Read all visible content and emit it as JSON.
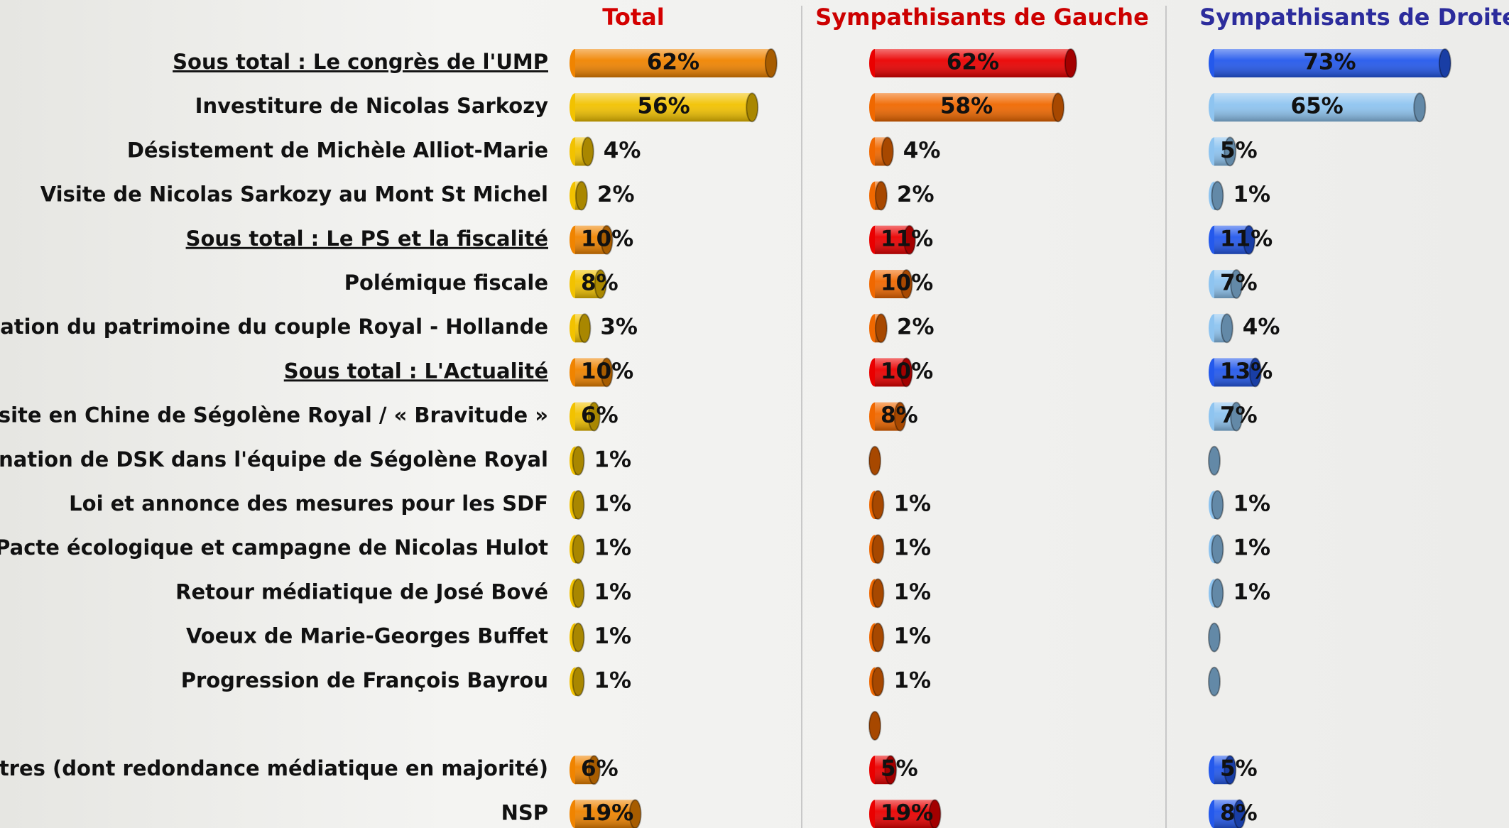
{
  "chart_data": {
    "type": "bar",
    "orientation": "horizontal",
    "categories": [
      "Sous total : Le congrès de l'UMP",
      "Investiture de Nicolas Sarkozy",
      "Désistement de Michèle Alliot-Marie",
      "Visite de Nicolas Sarkozy au Mont St Michel",
      "Sous total : Le PS et la fiscalité",
      "Polémique fiscale",
      "Révélation du patrimoine du couple Royal - Hollande",
      "Sous total : L'Actualité",
      "Visite en Chine de Ségolène Royal / « Bravitude »",
      "Nomination de DSK dans l'équipe de Ségolène Royal",
      "Loi et annonce des mesures pour les SDF",
      "Pacte écologique et campagne de Nicolas Hulot",
      "Retour médiatique de José Bové",
      "Voeux de Marie-Georges Buffet",
      "Progression de François Bayrou",
      null,
      "Autres (dont redondance médiatique en majorité)",
      "NSP"
    ],
    "underlined": [
      0,
      4,
      7
    ],
    "highlight_rows": [
      0,
      4,
      7,
      16,
      17
    ],
    "series": [
      {
        "name": "Total",
        "title_color": "#d40000",
        "color": "#f2c200",
        "highlight_color": "#f08400",
        "values": [
          62,
          56,
          4,
          2,
          10,
          8,
          3,
          10,
          6,
          1,
          1,
          1,
          1,
          1,
          1,
          null,
          6,
          19
        ],
        "value_labels": [
          "62%",
          "56%",
          "4%",
          "2%",
          "10%",
          "8%",
          "3%",
          "10%",
          "6%",
          "1%",
          "1%",
          "1%",
          "1%",
          "1%",
          "1%",
          null,
          "6%",
          "19%"
        ]
      },
      {
        "name": "Sympathisants de Gauche",
        "title_color": "#cc0000",
        "color": "#f06800",
        "highlight_color": "#ea0000",
        "values": [
          62,
          58,
          4,
          2,
          11,
          10,
          2,
          10,
          8,
          0,
          1,
          1,
          1,
          1,
          1,
          0,
          5,
          19
        ],
        "value_labels": [
          "62%",
          "58%",
          "4%",
          "2%",
          "11%",
          "10%",
          "2%",
          "10%",
          "8%",
          null,
          "1%",
          "1%",
          "1%",
          "1%",
          "1%",
          null,
          "5%",
          "19%"
        ]
      },
      {
        "name": "Sympathisants de Droite",
        "title_color": "#2c2c9c",
        "color": "#8ec4f0",
        "highlight_color": "#2459ec",
        "values": [
          73,
          65,
          5,
          1,
          11,
          7,
          4,
          13,
          7,
          0,
          1,
          1,
          1,
          0,
          0,
          null,
          5,
          8
        ],
        "value_labels": [
          "73%",
          "65%",
          "5%",
          "1%",
          "11%",
          "7%",
          "4%",
          "13%",
          "7%",
          null,
          "1%",
          "1%",
          "1%",
          null,
          null,
          null,
          "5%",
          "8%"
        ]
      }
    ]
  }
}
